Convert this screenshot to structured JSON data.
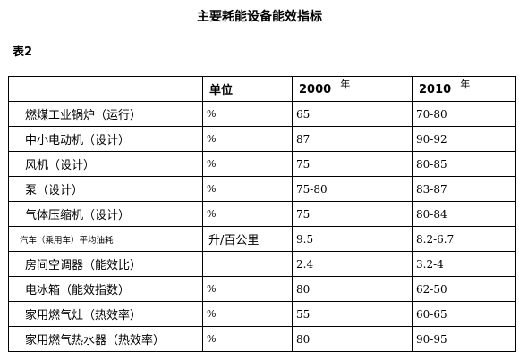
{
  "title": "主要耗能设备能效指标",
  "table_label": "表2",
  "header": {
    "name": "",
    "unit": "单位",
    "col_2000": "2000",
    "col_2010": "2010",
    "year_suffix": "年"
  },
  "rows": [
    {
      "name": "燃煤工业锅炉（运行）",
      "unit": "%",
      "v2000": "65",
      "v2010": "70-80"
    },
    {
      "name": "中小电动机（设计）",
      "unit": "%",
      "v2000": "87",
      "v2010": "90-92"
    },
    {
      "name": "风机（设计）",
      "unit": "%",
      "v2000": "75",
      "v2010": "80-85"
    },
    {
      "name": "泵（设计）",
      "unit": "%",
      "v2000": "75-80",
      "v2010": "83-87"
    },
    {
      "name": "气体压缩机（设计）",
      "unit": "%",
      "v2000": "75",
      "v2010": "80-84"
    },
    {
      "name": "汽车（乘用车）平均油耗",
      "unit": "升/百公里",
      "v2000": "9.5",
      "v2010": "8.2-6.7"
    },
    {
      "name": "房间空调器（能效比）",
      "unit": "",
      "v2000": "2.4",
      "v2010": "3.2-4"
    },
    {
      "name": "电冰箱（能效指数）",
      "unit": "%",
      "v2000": "80",
      "v2010": "62-50"
    },
    {
      "name": "家用燃气灶（热效率）",
      "unit": "%",
      "v2000": "55",
      "v2010": "60-65"
    },
    {
      "name": "家用燃气热水器（热效率）",
      "unit": "%",
      "v2000": "80",
      "v2010": "90-95"
    }
  ]
}
